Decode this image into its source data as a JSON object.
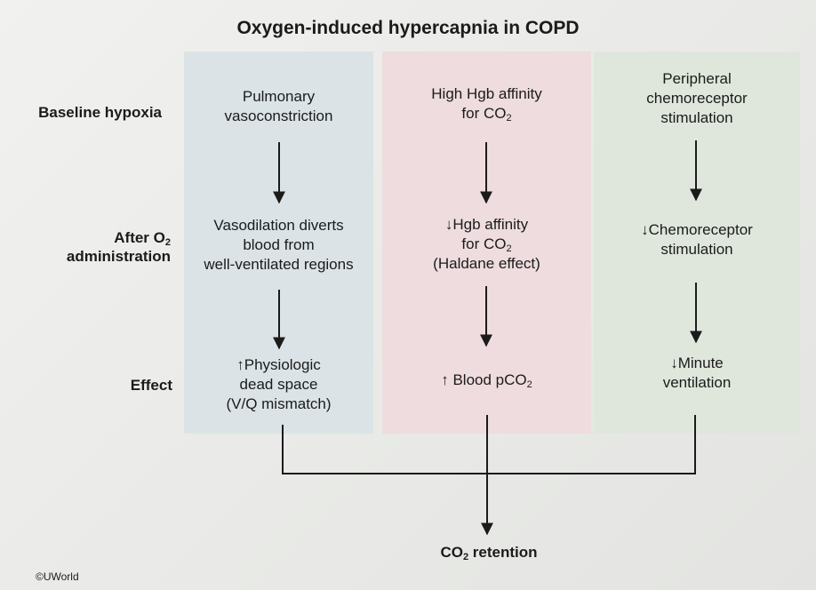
{
  "title": "Oxygen-induced hypercapnia in COPD",
  "row_labels": {
    "baseline": "Baseline hypoxia",
    "after_prefix": "After O",
    "after_sub": "2",
    "after_suffix": "administration",
    "effect": "Effect"
  },
  "columns": [
    {
      "baseline": {
        "line1": "Pulmonary",
        "line2": "vasoconstriction"
      },
      "after": {
        "line1": "Vasodilation diverts",
        "line2": "blood from",
        "line3": "well-ventilated regions"
      },
      "effect": {
        "symbol": "↑",
        "line1": "Physiologic",
        "line2": "dead space",
        "line3": "(V/Q mismatch)"
      }
    },
    {
      "baseline": {
        "line1": "High Hgb affinity",
        "line2_prefix": "for CO",
        "line2_sub": "2"
      },
      "after": {
        "symbol": "↓",
        "line1": "Hgb affinity",
        "line2_prefix": "for CO",
        "line2_sub": "2",
        "line3": "(Haldane effect)"
      },
      "effect": {
        "symbol": "↑",
        "text_prefix": "Blood pCO",
        "text_sub": "2"
      }
    },
    {
      "baseline": {
        "line1": "Peripheral",
        "line2": "chemoreceptor",
        "line3": "stimulation"
      },
      "after": {
        "symbol": "↓",
        "line1": "Chemoreceptor",
        "line2": "stimulation"
      },
      "effect": {
        "symbol": "↓",
        "line1": "Minute",
        "line2": "ventilation"
      }
    }
  ],
  "outcome": {
    "prefix": "CO",
    "sub": "2",
    "suffix": " retention"
  },
  "copyright": "©UWorld",
  "colors": {
    "col1_bg": "#dbe3e6",
    "col2_bg": "#eedcdf",
    "col3_bg": "#dfe7dc",
    "line": "#1b1b1b"
  }
}
